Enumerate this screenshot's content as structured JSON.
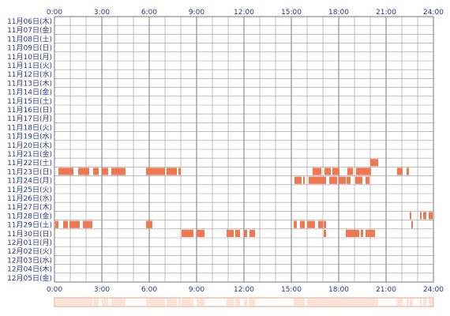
{
  "chart_data": {
    "type": "heatmap",
    "title": "",
    "xlabel": "",
    "ylabel": "",
    "x_range": [
      0,
      24
    ],
    "x_ticks": [
      "0:00",
      "3:00",
      "6:00",
      "9:00",
      "12:00",
      "15:00",
      "18:00",
      "21:00",
      "24:00"
    ],
    "grid": true,
    "categories": [
      "11月06日(木)",
      "11月07日(金)",
      "11月08日(土)",
      "11月09日(日)",
      "11月10日(月)",
      "11月11日(火)",
      "11月12日(水)",
      "11月13日(木)",
      "11月14日(金)",
      "11月15日(土)",
      "11月16日(日)",
      "11月17日(月)",
      "11月18日(火)",
      "11月19日(水)",
      "11月20日(木)",
      "11月21日(金)",
      "11月22日(土)",
      "11月23日(日)",
      "11月24日(月)",
      "11月25日(火)",
      "11月26日(水)",
      "11月27日(木)",
      "11月28日(金)",
      "11月29日(土)",
      "11月30日(日)",
      "12月01日(月)",
      "12月02日(火)",
      "12月03日(水)",
      "12月04日(木)",
      "12月05日(金)"
    ],
    "intervals": [
      [],
      [],
      [],
      [],
      [],
      [],
      [],
      [],
      [],
      [],
      [],
      [],
      [],
      [],
      [],
      [],
      [
        [
          20.0,
          20.5
        ]
      ],
      [
        [
          0.25,
          1.2
        ],
        [
          1.5,
          2.2
        ],
        [
          2.45,
          2.8
        ],
        [
          3.0,
          3.4
        ],
        [
          3.6,
          4.5
        ],
        [
          5.8,
          7.0
        ],
        [
          7.1,
          7.75
        ],
        [
          7.85,
          8.0
        ],
        [
          16.35,
          16.9
        ],
        [
          17.1,
          17.5
        ],
        [
          17.6,
          18.05
        ],
        [
          18.55,
          18.9
        ],
        [
          19.1,
          20.05
        ],
        [
          21.7,
          22.05
        ],
        [
          22.3,
          22.45
        ]
      ],
      [
        [
          15.2,
          15.65
        ],
        [
          15.75,
          15.85
        ],
        [
          16.1,
          17.2
        ],
        [
          17.4,
          17.9
        ],
        [
          18.0,
          18.45
        ],
        [
          18.5,
          18.75
        ],
        [
          19.05,
          19.5
        ],
        [
          19.7,
          19.95
        ]
      ],
      [],
      [],
      [],
      [
        [
          22.5,
          22.6
        ],
        [
          23.15,
          23.25
        ],
        [
          23.35,
          23.55
        ],
        [
          23.7,
          23.95
        ]
      ],
      [
        [
          0.05,
          0.25
        ],
        [
          0.55,
          0.85
        ],
        [
          0.95,
          1.6
        ],
        [
          1.8,
          2.4
        ],
        [
          5.8,
          6.2
        ],
        [
          15.15,
          15.35
        ],
        [
          15.55,
          15.85
        ],
        [
          16.0,
          16.5
        ],
        [
          16.7,
          17.0
        ],
        [
          17.05,
          17.2
        ],
        [
          22.6,
          22.7
        ]
      ],
      [
        [
          8.05,
          8.8
        ],
        [
          9.0,
          9.5
        ],
        [
          10.9,
          11.35
        ],
        [
          11.45,
          11.75
        ],
        [
          12.0,
          12.2
        ],
        [
          12.35,
          12.7
        ],
        [
          17.05,
          17.2
        ],
        [
          18.45,
          19.3
        ],
        [
          19.4,
          19.55
        ],
        [
          19.7,
          20.3
        ]
      ],
      [],
      [],
      [],
      [],
      []
    ],
    "summary_band": true
  },
  "colors": {
    "bar": "#f07850",
    "grid": "#999999",
    "border": "#777777",
    "label": "#2a3a8a",
    "band": "#fbe3d8",
    "band_border": "#e8a080"
  }
}
